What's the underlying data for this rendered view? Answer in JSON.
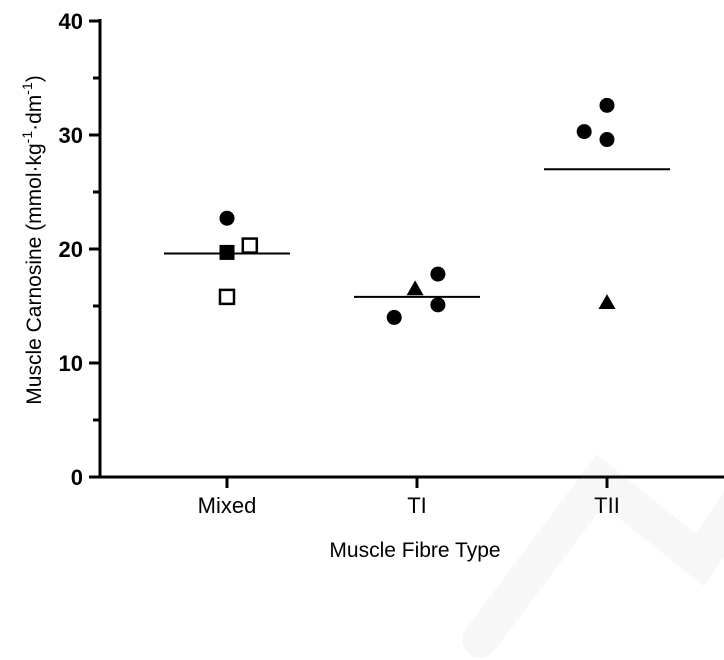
{
  "chart_data": {
    "type": "scatter",
    "categories": [
      "Mixed",
      "TI",
      "TII"
    ],
    "xlabel": "Muscle Fibre Type",
    "ylabel": {
      "pre": "Muscle Carnosine (mmol·kg",
      "sup1": "-1",
      "mid": "·dm",
      "sup2": "-1",
      "post": ")"
    },
    "ylim": [
      0,
      40
    ],
    "yticks": [
      "0",
      "10",
      "20",
      "30",
      "40"
    ],
    "grid": false,
    "legend": "none",
    "points": [
      {
        "category": "Mixed",
        "offset": 0.0,
        "y": 22.7,
        "marker": "circle"
      },
      {
        "category": "Mixed",
        "offset": 0.0,
        "y": 19.7,
        "marker": "square"
      },
      {
        "category": "Mixed",
        "offset": 0.24,
        "y": 20.3,
        "marker": "open-square"
      },
      {
        "category": "Mixed",
        "offset": 0.0,
        "y": 15.8,
        "marker": "open-square"
      },
      {
        "category": "TI",
        "offset": -0.24,
        "y": 14.0,
        "marker": "circle"
      },
      {
        "category": "TI",
        "offset": -0.02,
        "y": 16.5,
        "marker": "triangle"
      },
      {
        "category": "TI",
        "offset": 0.22,
        "y": 17.8,
        "marker": "circle"
      },
      {
        "category": "TI",
        "offset": 0.22,
        "y": 15.1,
        "marker": "circle"
      },
      {
        "category": "TII",
        "offset": -0.24,
        "y": 30.3,
        "marker": "circle"
      },
      {
        "category": "TII",
        "offset": 0.0,
        "y": 32.6,
        "marker": "circle"
      },
      {
        "category": "TII",
        "offset": 0.0,
        "y": 29.6,
        "marker": "circle"
      },
      {
        "category": "TII",
        "offset": 0.0,
        "y": 15.3,
        "marker": "triangle"
      }
    ],
    "means": [
      {
        "category": "Mixed",
        "y": 19.6
      },
      {
        "category": "TI",
        "y": 15.8
      },
      {
        "category": "TII",
        "y": 27.0
      }
    ]
  }
}
